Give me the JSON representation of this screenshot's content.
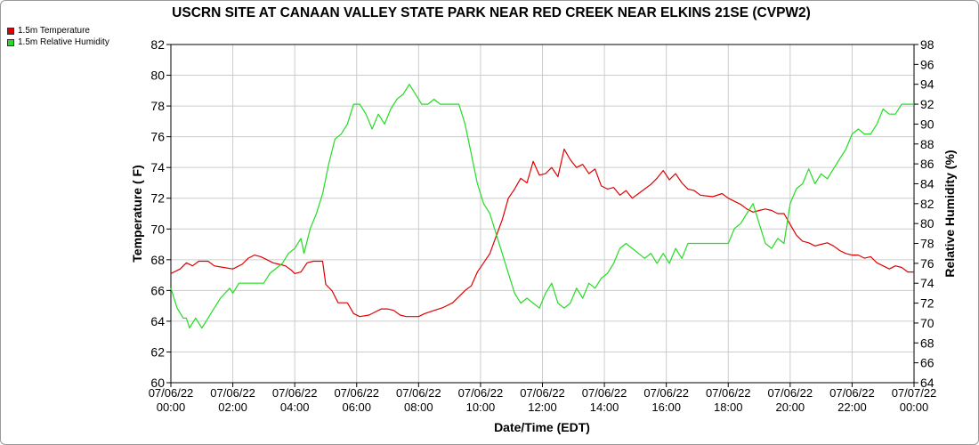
{
  "chart_data": {
    "type": "line",
    "title": "USCRN SITE AT CANAAN VALLEY STATE PARK NEAR RED CREEK NEAR ELKINS 21SE (CVPW2)",
    "xlabel": "Date/Time (EDT)",
    "ylabel_left": "Temperature ( F)",
    "ylabel_right": "Relative Humidity (%)",
    "x_ticks": [
      {
        "hour": 0,
        "date": "07/06/22",
        "time": "00:00"
      },
      {
        "hour": 2,
        "date": "07/06/22",
        "time": "02:00"
      },
      {
        "hour": 4,
        "date": "07/06/22",
        "time": "04:00"
      },
      {
        "hour": 6,
        "date": "07/06/22",
        "time": "06:00"
      },
      {
        "hour": 8,
        "date": "07/06/22",
        "time": "08:00"
      },
      {
        "hour": 10,
        "date": "07/06/22",
        "time": "10:00"
      },
      {
        "hour": 12,
        "date": "07/06/22",
        "time": "12:00"
      },
      {
        "hour": 14,
        "date": "07/06/22",
        "time": "14:00"
      },
      {
        "hour": 16,
        "date": "07/06/22",
        "time": "16:00"
      },
      {
        "hour": 18,
        "date": "07/06/22",
        "time": "18:00"
      },
      {
        "hour": 20,
        "date": "07/06/22",
        "time": "20:00"
      },
      {
        "hour": 22,
        "date": "07/06/22",
        "time": "22:00"
      },
      {
        "hour": 24,
        "date": "07/07/22",
        "time": "00:00"
      }
    ],
    "xlim": [
      0,
      24
    ],
    "ylim_left": [
      60,
      82
    ],
    "yticks_left": [
      60,
      62,
      64,
      66,
      68,
      70,
      72,
      74,
      76,
      78,
      80,
      82
    ],
    "ylim_right": [
      64,
      98
    ],
    "yticks_right": [
      64,
      66,
      68,
      70,
      72,
      74,
      76,
      78,
      80,
      82,
      84,
      86,
      88,
      90,
      92,
      94,
      96,
      98
    ],
    "grid": true,
    "legend_position": "top-left",
    "series": [
      {
        "name": "1.5m Temperature",
        "axis": "left",
        "color": "#e00000",
        "points": [
          [
            0,
            67.1
          ],
          [
            0.3,
            67.4
          ],
          [
            0.5,
            67.8
          ],
          [
            0.7,
            67.6
          ],
          [
            0.9,
            67.9
          ],
          [
            1.2,
            67.9
          ],
          [
            1.4,
            67.6
          ],
          [
            1.7,
            67.5
          ],
          [
            2.0,
            67.4
          ],
          [
            2.3,
            67.7
          ],
          [
            2.5,
            68.1
          ],
          [
            2.7,
            68.3
          ],
          [
            2.9,
            68.2
          ],
          [
            3.1,
            68.0
          ],
          [
            3.3,
            67.8
          ],
          [
            3.5,
            67.7
          ],
          [
            3.7,
            67.6
          ],
          [
            3.9,
            67.3
          ],
          [
            4.0,
            67.1
          ],
          [
            4.2,
            67.2
          ],
          [
            4.4,
            67.8
          ],
          [
            4.6,
            67.9
          ],
          [
            4.9,
            67.9
          ],
          [
            5.0,
            66.4
          ],
          [
            5.2,
            66.0
          ],
          [
            5.4,
            65.2
          ],
          [
            5.7,
            65.2
          ],
          [
            5.9,
            64.5
          ],
          [
            6.1,
            64.3
          ],
          [
            6.4,
            64.4
          ],
          [
            6.6,
            64.6
          ],
          [
            6.8,
            64.8
          ],
          [
            7.0,
            64.8
          ],
          [
            7.2,
            64.7
          ],
          [
            7.4,
            64.4
          ],
          [
            7.6,
            64.3
          ],
          [
            8.0,
            64.3
          ],
          [
            8.2,
            64.5
          ],
          [
            8.5,
            64.7
          ],
          [
            8.8,
            64.9
          ],
          [
            9.1,
            65.2
          ],
          [
            9.3,
            65.6
          ],
          [
            9.5,
            66.0
          ],
          [
            9.7,
            66.3
          ],
          [
            9.9,
            67.2
          ],
          [
            10.1,
            67.8
          ],
          [
            10.3,
            68.4
          ],
          [
            10.5,
            69.5
          ],
          [
            10.7,
            70.6
          ],
          [
            10.9,
            72.0
          ],
          [
            11.1,
            72.6
          ],
          [
            11.3,
            73.3
          ],
          [
            11.5,
            73.0
          ],
          [
            11.7,
            74.4
          ],
          [
            11.9,
            73.5
          ],
          [
            12.1,
            73.6
          ],
          [
            12.3,
            74.0
          ],
          [
            12.5,
            73.4
          ],
          [
            12.7,
            75.2
          ],
          [
            12.9,
            74.5
          ],
          [
            13.1,
            74.0
          ],
          [
            13.3,
            74.2
          ],
          [
            13.5,
            73.6
          ],
          [
            13.7,
            73.9
          ],
          [
            13.9,
            72.8
          ],
          [
            14.1,
            72.6
          ],
          [
            14.3,
            72.7
          ],
          [
            14.5,
            72.2
          ],
          [
            14.7,
            72.5
          ],
          [
            14.9,
            72.0
          ],
          [
            15.1,
            72.3
          ],
          [
            15.3,
            72.6
          ],
          [
            15.5,
            72.9
          ],
          [
            15.7,
            73.3
          ],
          [
            15.9,
            73.8
          ],
          [
            16.1,
            73.2
          ],
          [
            16.3,
            73.6
          ],
          [
            16.5,
            73.0
          ],
          [
            16.7,
            72.6
          ],
          [
            16.9,
            72.5
          ],
          [
            17.1,
            72.2
          ],
          [
            17.5,
            72.1
          ],
          [
            17.8,
            72.3
          ],
          [
            18.0,
            72.0
          ],
          [
            18.2,
            71.8
          ],
          [
            18.4,
            71.6
          ],
          [
            18.6,
            71.3
          ],
          [
            18.8,
            71.1
          ],
          [
            19.0,
            71.2
          ],
          [
            19.2,
            71.3
          ],
          [
            19.4,
            71.2
          ],
          [
            19.6,
            71.0
          ],
          [
            19.8,
            71.0
          ],
          [
            20.0,
            70.3
          ],
          [
            20.2,
            69.6
          ],
          [
            20.4,
            69.2
          ],
          [
            20.6,
            69.1
          ],
          [
            20.8,
            68.9
          ],
          [
            21.0,
            69.0
          ],
          [
            21.2,
            69.1
          ],
          [
            21.4,
            68.9
          ],
          [
            21.6,
            68.6
          ],
          [
            21.8,
            68.4
          ],
          [
            22.0,
            68.3
          ],
          [
            22.2,
            68.3
          ],
          [
            22.4,
            68.1
          ],
          [
            22.6,
            68.2
          ],
          [
            22.8,
            67.8
          ],
          [
            23.0,
            67.6
          ],
          [
            23.2,
            67.4
          ],
          [
            23.4,
            67.6
          ],
          [
            23.6,
            67.5
          ],
          [
            23.8,
            67.2
          ],
          [
            24.0,
            67.2
          ]
        ]
      },
      {
        "name": "1.5m Relative Humidity",
        "axis": "right",
        "color": "#22dd22",
        "points": [
          [
            0,
            73.5
          ],
          [
            0.2,
            71.5
          ],
          [
            0.4,
            70.5
          ],
          [
            0.5,
            70.5
          ],
          [
            0.6,
            69.5
          ],
          [
            0.8,
            70.5
          ],
          [
            1.0,
            69.5
          ],
          [
            1.2,
            70.5
          ],
          [
            1.4,
            71.5
          ],
          [
            1.6,
            72.5
          ],
          [
            1.9,
            73.5
          ],
          [
            2.0,
            73.0
          ],
          [
            2.2,
            74.0
          ],
          [
            2.4,
            74.0
          ],
          [
            2.8,
            74.0
          ],
          [
            3.0,
            74.0
          ],
          [
            3.2,
            75.0
          ],
          [
            3.4,
            75.5
          ],
          [
            3.6,
            76.0
          ],
          [
            3.8,
            77.0
          ],
          [
            4.0,
            77.5
          ],
          [
            4.2,
            78.5
          ],
          [
            4.3,
            77.0
          ],
          [
            4.5,
            79.5
          ],
          [
            4.7,
            81.0
          ],
          [
            4.9,
            83.0
          ],
          [
            5.1,
            86.0
          ],
          [
            5.3,
            88.5
          ],
          [
            5.5,
            89.0
          ],
          [
            5.7,
            90.0
          ],
          [
            5.9,
            92.0
          ],
          [
            6.1,
            92.0
          ],
          [
            6.3,
            91.0
          ],
          [
            6.5,
            89.5
          ],
          [
            6.7,
            91.0
          ],
          [
            6.9,
            90.0
          ],
          [
            7.1,
            91.5
          ],
          [
            7.3,
            92.5
          ],
          [
            7.5,
            93.0
          ],
          [
            7.7,
            94.0
          ],
          [
            7.9,
            93.0
          ],
          [
            8.1,
            92.0
          ],
          [
            8.3,
            92.0
          ],
          [
            8.5,
            92.5
          ],
          [
            8.7,
            92.0
          ],
          [
            9.0,
            92.0
          ],
          [
            9.3,
            92.0
          ],
          [
            9.5,
            90.0
          ],
          [
            9.7,
            87.0
          ],
          [
            9.9,
            84.0
          ],
          [
            10.1,
            82.0
          ],
          [
            10.3,
            81.0
          ],
          [
            10.5,
            79.0
          ],
          [
            10.7,
            77.0
          ],
          [
            10.9,
            75.0
          ],
          [
            11.1,
            73.0
          ],
          [
            11.3,
            72.0
          ],
          [
            11.5,
            72.5
          ],
          [
            11.7,
            72.0
          ],
          [
            11.9,
            71.5
          ],
          [
            12.1,
            73.0
          ],
          [
            12.3,
            74.0
          ],
          [
            12.5,
            72.0
          ],
          [
            12.7,
            71.5
          ],
          [
            12.9,
            72.0
          ],
          [
            13.1,
            73.5
          ],
          [
            13.3,
            72.5
          ],
          [
            13.5,
            74.0
          ],
          [
            13.7,
            73.5
          ],
          [
            13.9,
            74.5
          ],
          [
            14.1,
            75.0
          ],
          [
            14.3,
            76.0
          ],
          [
            14.5,
            77.5
          ],
          [
            14.7,
            78.0
          ],
          [
            14.9,
            77.5
          ],
          [
            15.1,
            77.0
          ],
          [
            15.3,
            76.5
          ],
          [
            15.5,
            77.0
          ],
          [
            15.7,
            76.0
          ],
          [
            15.9,
            77.0
          ],
          [
            16.1,
            76.0
          ],
          [
            16.3,
            77.5
          ],
          [
            16.5,
            76.5
          ],
          [
            16.7,
            78.0
          ],
          [
            16.9,
            78.0
          ],
          [
            17.3,
            78.0
          ],
          [
            17.7,
            78.0
          ],
          [
            18.0,
            78.0
          ],
          [
            18.2,
            79.5
          ],
          [
            18.4,
            80.0
          ],
          [
            18.6,
            81.0
          ],
          [
            18.8,
            82.0
          ],
          [
            19.0,
            80.0
          ],
          [
            19.2,
            78.0
          ],
          [
            19.4,
            77.5
          ],
          [
            19.6,
            78.5
          ],
          [
            19.8,
            78.0
          ],
          [
            20.0,
            82.0
          ],
          [
            20.2,
            83.5
          ],
          [
            20.4,
            84.0
          ],
          [
            20.6,
            85.5
          ],
          [
            20.8,
            84.0
          ],
          [
            21.0,
            85.0
          ],
          [
            21.2,
            84.5
          ],
          [
            21.4,
            85.5
          ],
          [
            21.6,
            86.5
          ],
          [
            21.8,
            87.5
          ],
          [
            22.0,
            89.0
          ],
          [
            22.2,
            89.5
          ],
          [
            22.4,
            89.0
          ],
          [
            22.6,
            89.0
          ],
          [
            22.8,
            90.0
          ],
          [
            23.0,
            91.5
          ],
          [
            23.2,
            91.0
          ],
          [
            23.4,
            91.0
          ],
          [
            23.6,
            92.0
          ],
          [
            23.8,
            92.0
          ],
          [
            24.0,
            92.0
          ]
        ]
      }
    ]
  }
}
